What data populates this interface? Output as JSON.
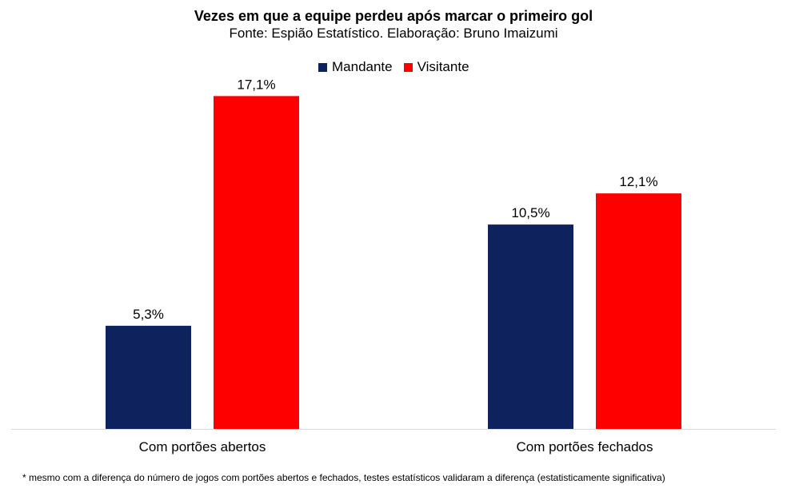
{
  "chart_data": {
    "type": "bar",
    "title": "Vezes em que a equipe perdeu após marcar o primeiro gol",
    "subtitle": "Fonte: Espião Estatístico. Elaboração: Bruno Imaizumi",
    "categories": [
      "Com portões abertos",
      "Com portões fechados"
    ],
    "series": [
      {
        "name": "Mandante",
        "color": "#0e235e",
        "values": [
          5.3,
          10.5
        ],
        "labels": [
          "5,3%",
          "10,5%"
        ]
      },
      {
        "name": "Visitante",
        "color": "#ff0000",
        "values": [
          17.1,
          12.1
        ],
        "labels": [
          "17,1%",
          "12,1%"
        ]
      }
    ],
    "ylim": [
      0,
      19
    ],
    "grid": false,
    "legend_position": "top-center"
  },
  "footnote": "* mesmo com a diferença do número de jogos com portões abertos e fechados, testes estatísticos validaram a diferença (estatisticamente significativa)"
}
